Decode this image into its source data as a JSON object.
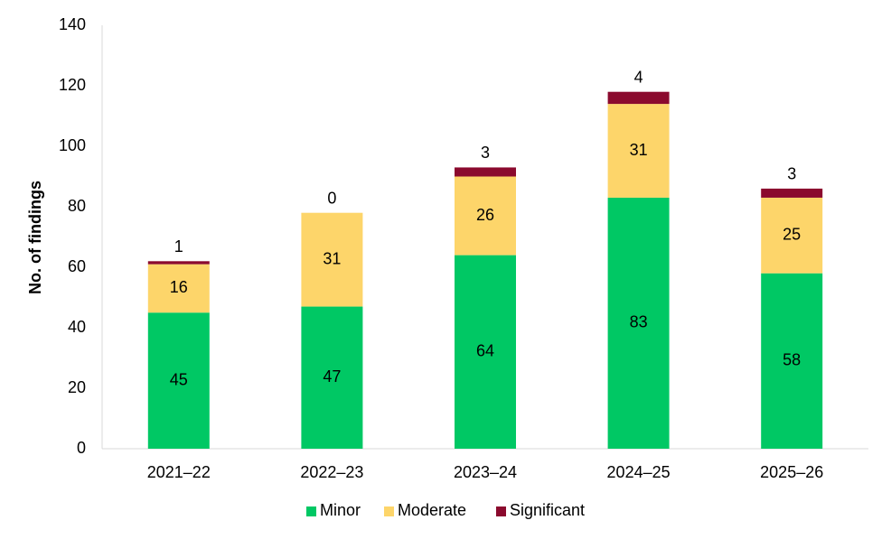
{
  "chart_data": {
    "type": "bar",
    "stacked": true,
    "categories": [
      "2021–22",
      "2022–23",
      "2023–24",
      "2024–25",
      "2025–26"
    ],
    "series": [
      {
        "name": "Minor",
        "color": "#00C864",
        "values": [
          45,
          47,
          64,
          83,
          58
        ]
      },
      {
        "name": "Moderate",
        "color": "#FDD56A",
        "values": [
          16,
          31,
          26,
          31,
          25
        ]
      },
      {
        "name": "Significant",
        "color": "#8B0A2E",
        "values": [
          1,
          0,
          3,
          4,
          3
        ]
      }
    ],
    "title": "",
    "xlabel": "",
    "ylabel": "No. of findings",
    "ylim": [
      0,
      140
    ],
    "yticks": [
      0,
      20,
      40,
      60,
      80,
      100,
      120,
      140
    ],
    "grid": false,
    "legend_position": "bottom",
    "data_labels": {
      "Minor": "inside",
      "Moderate": "inside",
      "Significant": "above"
    }
  }
}
